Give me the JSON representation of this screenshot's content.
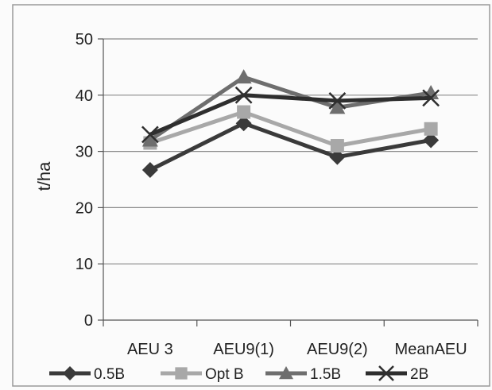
{
  "chart_data": {
    "type": "line",
    "title": "",
    "xlabel": "",
    "ylabel": "t/ha",
    "categories": [
      "AEU 3",
      "AEU9(1)",
      "AEU9(2)",
      "MeanAEU"
    ],
    "ylim": [
      0,
      50
    ],
    "yticks": [
      0,
      10,
      20,
      30,
      40,
      50
    ],
    "grid": true,
    "legend_position": "bottom",
    "series": [
      {
        "name": "0.5B",
        "values": [
          26.7,
          35,
          29,
          32
        ],
        "color": "#3a3a3a",
        "marker": "diamond"
      },
      {
        "name": "Opt B",
        "values": [
          31.5,
          37,
          31,
          34
        ],
        "color": "#a8a8a8",
        "marker": "square"
      },
      {
        "name": "1.5B",
        "values": [
          32,
          43.2,
          37.8,
          40.4
        ],
        "color": "#6e6e6e",
        "marker": "triangle"
      },
      {
        "name": "2B",
        "values": [
          33,
          40,
          39,
          39.5
        ],
        "color": "#2e2e2e",
        "marker": "x"
      }
    ]
  }
}
